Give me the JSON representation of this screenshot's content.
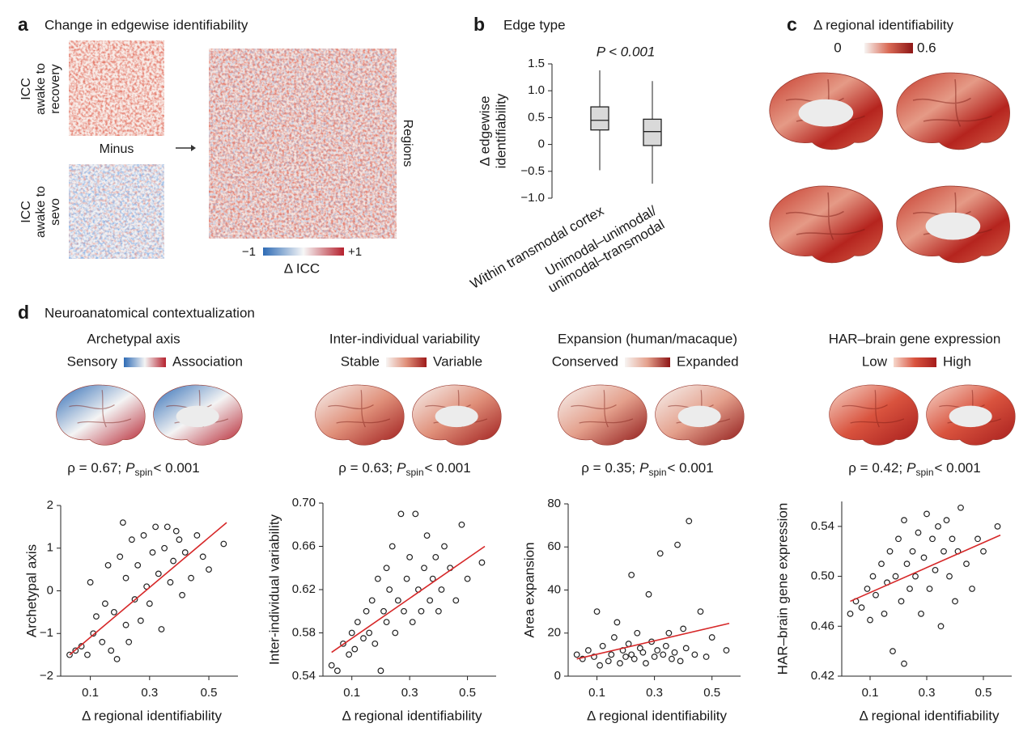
{
  "panels": {
    "a": {
      "label": "a",
      "title": "Change in edgewise identifiability",
      "top_label": [
        "ICC",
        "awake to",
        "recovery"
      ],
      "operator": "Minus",
      "bottom_label": [
        "ICC",
        "awake to",
        "sevo"
      ],
      "side_label": "Regions",
      "colorbar": [
        "−1",
        "+1"
      ],
      "colorbar_title": "Δ ICC"
    },
    "b": {
      "label": "b"
    },
    "c": {
      "label": "c",
      "title": "Δ regional identifiability",
      "colorbar": [
        "0",
        "0.6"
      ]
    },
    "d": {
      "label": "d",
      "title": "Neuroanatomical contextualization"
    }
  },
  "chart_data": [
    {
      "type": "box",
      "title": "Edge type",
      "annotation": "P < 0.001",
      "ylabel": [
        "Δ edgewise",
        "identifiability"
      ],
      "categories": [
        [
          "Within transmodal cortex"
        ],
        [
          "Unimodal–unimodal/",
          "unimodal–transmodal"
        ]
      ],
      "stats": [
        {
          "whislo": -0.48,
          "q1": 0.27,
          "med": 0.45,
          "q3": 0.7,
          "whishi": 1.38
        },
        {
          "whislo": -0.73,
          "q1": -0.02,
          "med": 0.24,
          "q3": 0.47,
          "whishi": 1.18
        }
      ],
      "ylim": [
        -1,
        1.5
      ],
      "yticks": [
        {
          "value": -1,
          "label": "−1.0"
        },
        {
          "value": -0.5,
          "label": "−0.5"
        },
        0,
        0.5,
        {
          "value": 1,
          "label": "1.0"
        },
        1.5
      ],
      "color": "#d9d9d9"
    },
    {
      "type": "scatter",
      "title": "Archetypal axis",
      "legend_low": "Sensory",
      "legend_high": "Association",
      "stat": {
        "rho": "ρ = 0.67;",
        "p": "P",
        "sub": "spin",
        "value": "< 0.001"
      },
      "xlabel": "Δ regional identifiability",
      "ylabel": "Archetypal axis",
      "colormap": [
        "#2e6bb5",
        "#f4f4f4",
        "#b5212e"
      ],
      "point_color": "#222222",
      "fit_color": "#d62728",
      "xlim": [
        0,
        0.56
      ],
      "ylim": [
        -2,
        2
      ],
      "xticks": [
        0.1,
        0.3,
        0.5
      ],
      "yticks": [
        {
          "value": -2,
          "label": "−2"
        },
        {
          "value": -1,
          "label": "−1"
        },
        0,
        1,
        2
      ],
      "x": [
        0.03,
        0.05,
        0.07,
        0.09,
        0.1,
        0.11,
        0.12,
        0.14,
        0.15,
        0.16,
        0.17,
        0.18,
        0.19,
        0.2,
        0.21,
        0.22,
        0.22,
        0.23,
        0.24,
        0.25,
        0.26,
        0.27,
        0.28,
        0.29,
        0.3,
        0.31,
        0.32,
        0.33,
        0.34,
        0.35,
        0.36,
        0.37,
        0.38,
        0.39,
        0.4,
        0.41,
        0.42,
        0.44,
        0.46,
        0.48,
        0.5,
        0.55
      ],
      "y": [
        -1.5,
        -1.4,
        -1.3,
        -1.5,
        0.2,
        -1.0,
        -0.6,
        -1.2,
        -0.3,
        0.6,
        -1.4,
        -0.5,
        -1.6,
        0.8,
        1.6,
        -0.8,
        0.3,
        -1.2,
        1.2,
        -0.2,
        0.6,
        -0.7,
        1.3,
        0.1,
        -0.3,
        0.9,
        1.5,
        0.4,
        -0.9,
        1.0,
        1.5,
        0.2,
        0.7,
        1.4,
        1.2,
        -0.1,
        0.9,
        0.3,
        1.3,
        0.8,
        0.5,
        1.1
      ],
      "fit": {
        "x": [
          0.03,
          0.56
        ],
        "y": [
          -1.5,
          1.6
        ]
      }
    },
    {
      "type": "scatter",
      "title": "Inter-individual variability",
      "legend_low": "Stable",
      "legend_high": "Variable",
      "stat": {
        "rho": "ρ = 0.63;",
        "p": "P",
        "sub": "spin",
        "value": "< 0.001"
      },
      "xlabel": "Δ regional identifiability",
      "ylabel": "Inter-individual variability",
      "colormap": [
        "#f7f4f2",
        "#e0907a",
        "#9e1b1b"
      ],
      "point_color": "#222222",
      "fit_color": "#d62728",
      "xlim": [
        0,
        0.56
      ],
      "ylim": [
        0.54,
        0.7
      ],
      "xticks": [
        0.1,
        0.3,
        0.5
      ],
      "yticks": [
        0.54,
        0.58,
        0.62,
        0.66,
        {
          "value": 0.7,
          "label": "0.70"
        }
      ],
      "x": [
        0.03,
        0.05,
        0.07,
        0.09,
        0.1,
        0.11,
        0.12,
        0.14,
        0.15,
        0.16,
        0.17,
        0.18,
        0.19,
        0.2,
        0.21,
        0.22,
        0.22,
        0.23,
        0.24,
        0.25,
        0.26,
        0.27,
        0.28,
        0.29,
        0.3,
        0.31,
        0.32,
        0.33,
        0.34,
        0.35,
        0.36,
        0.37,
        0.38,
        0.39,
        0.4,
        0.41,
        0.42,
        0.44,
        0.46,
        0.48,
        0.5,
        0.55
      ],
      "y": [
        0.55,
        0.545,
        0.57,
        0.56,
        0.58,
        0.565,
        0.59,
        0.575,
        0.6,
        0.58,
        0.61,
        0.57,
        0.63,
        0.545,
        0.6,
        0.64,
        0.59,
        0.62,
        0.66,
        0.58,
        0.61,
        0.69,
        0.6,
        0.63,
        0.65,
        0.59,
        0.69,
        0.62,
        0.6,
        0.64,
        0.67,
        0.61,
        0.63,
        0.65,
        0.6,
        0.62,
        0.66,
        0.64,
        0.61,
        0.68,
        0.63,
        0.645
      ],
      "fit": {
        "x": [
          0.03,
          0.56
        ],
        "y": [
          0.562,
          0.66
        ]
      }
    },
    {
      "type": "scatter",
      "title": "Expansion (human/macaque)",
      "legend_low": "Conserved",
      "legend_high": "Expanded",
      "stat": {
        "rho": "ρ = 0.35;",
        "p": "P",
        "sub": "spin",
        "value": "< 0.001"
      },
      "xlabel": "Δ regional identifiability",
      "ylabel": "Area expansion",
      "colormap": [
        "#f7f4f2",
        "#e4a08c",
        "#8e1616"
      ],
      "point_color": "#222222",
      "fit_color": "#d62728",
      "xlim": [
        0,
        0.56
      ],
      "ylim": [
        0,
        80
      ],
      "xticks": [
        0.1,
        0.3,
        0.5
      ],
      "yticks": [
        0,
        20,
        40,
        60,
        80
      ],
      "x": [
        0.03,
        0.05,
        0.07,
        0.09,
        0.1,
        0.11,
        0.12,
        0.14,
        0.15,
        0.16,
        0.17,
        0.18,
        0.19,
        0.2,
        0.21,
        0.22,
        0.22,
        0.23,
        0.24,
        0.25,
        0.26,
        0.27,
        0.28,
        0.29,
        0.3,
        0.31,
        0.32,
        0.33,
        0.34,
        0.35,
        0.36,
        0.37,
        0.38,
        0.39,
        0.4,
        0.41,
        0.42,
        0.44,
        0.46,
        0.48,
        0.5,
        0.55
      ],
      "y": [
        10,
        8,
        12,
        9,
        30,
        5,
        14,
        7,
        10,
        18,
        25,
        6,
        12,
        9,
        15,
        47,
        10,
        8,
        20,
        13,
        11,
        6,
        38,
        16,
        9,
        12,
        57,
        10,
        14,
        20,
        8,
        11,
        61,
        7,
        22,
        13,
        72,
        10,
        30,
        9,
        18,
        12
      ],
      "fit": {
        "x": [
          0.03,
          0.56
        ],
        "y": [
          8,
          24.5
        ]
      }
    },
    {
      "type": "scatter",
      "title": "HAR–brain gene expression",
      "legend_low": "Low",
      "legend_high": "High",
      "stat": {
        "rho": "ρ = 0.42;",
        "p": "P",
        "sub": "spin",
        "value": "< 0.001"
      },
      "xlabel": "Δ regional identifiability",
      "ylabel": "HAR–brain gene expression",
      "colormap": [
        "#f6d8cc",
        "#d9533e",
        "#a51c1c"
      ],
      "point_color": "#222222",
      "fit_color": "#d62728",
      "xlim": [
        0,
        0.56
      ],
      "ylim": [
        0.42,
        0.56
      ],
      "xticks": [
        0.1,
        0.3,
        0.5
      ],
      "yticks": [
        0.42,
        0.46,
        {
          "value": 0.5,
          "label": "0.50"
        },
        0.54
      ],
      "x": [
        0.03,
        0.05,
        0.07,
        0.09,
        0.1,
        0.11,
        0.12,
        0.14,
        0.15,
        0.16,
        0.17,
        0.18,
        0.19,
        0.2,
        0.21,
        0.22,
        0.22,
        0.23,
        0.24,
        0.25,
        0.26,
        0.27,
        0.28,
        0.29,
        0.3,
        0.31,
        0.32,
        0.33,
        0.34,
        0.35,
        0.36,
        0.37,
        0.38,
        0.39,
        0.4,
        0.41,
        0.42,
        0.44,
        0.46,
        0.48,
        0.5,
        0.55
      ],
      "y": [
        0.47,
        0.48,
        0.475,
        0.49,
        0.465,
        0.5,
        0.485,
        0.51,
        0.47,
        0.495,
        0.52,
        0.44,
        0.5,
        0.53,
        0.48,
        0.545,
        0.43,
        0.51,
        0.49,
        0.52,
        0.5,
        0.535,
        0.47,
        0.515,
        0.55,
        0.49,
        0.53,
        0.505,
        0.54,
        0.46,
        0.52,
        0.545,
        0.5,
        0.53,
        0.48,
        0.52,
        0.555,
        0.51,
        0.49,
        0.53,
        0.52,
        0.54
      ],
      "fit": {
        "x": [
          0.03,
          0.56
        ],
        "y": [
          0.48,
          0.533
        ]
      }
    }
  ]
}
